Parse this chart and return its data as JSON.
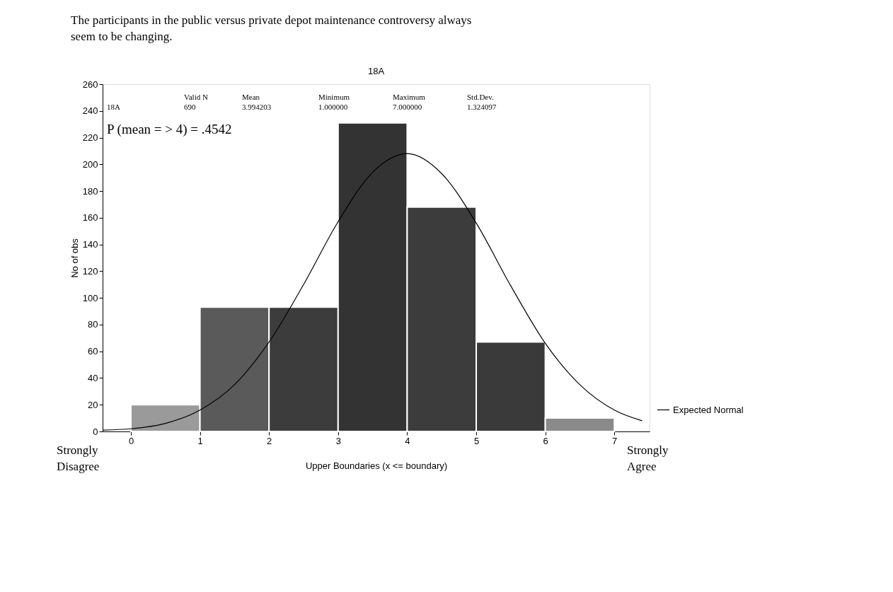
{
  "chart_data": {
    "type": "histogram",
    "title": "18A",
    "xlabel": "Upper Boundaries (x <= boundary)",
    "ylabel": "No of obs",
    "bins": [
      0,
      1,
      2,
      3,
      4,
      5,
      6,
      7
    ],
    "values": [
      20,
      93,
      93,
      231,
      168,
      67,
      10
    ],
    "colors": [
      "#9a9a9a",
      "#5a5a5a",
      "#3c3c3c",
      "#333333",
      "#3c3c3c",
      "#3a3a3a",
      "#8a8a8a"
    ],
    "series": [
      {
        "type": "line",
        "name": "Expected Normal",
        "color": "#000000",
        "x": [
          -0.4,
          0,
          0.5,
          1,
          1.5,
          2,
          2.5,
          3,
          3.5,
          4,
          4.5,
          5,
          5.5,
          6,
          6.5,
          7,
          7.4
        ],
        "values": [
          1,
          2,
          6,
          16,
          35,
          67,
          110,
          157,
          194,
          208,
          193,
          156,
          109,
          66,
          35,
          16,
          8
        ]
      }
    ],
    "xlim": [
      -0.41,
      7.51
    ],
    "xticks": [
      0,
      1,
      2,
      3,
      4,
      5,
      6,
      7
    ],
    "ylim": [
      0,
      260
    ],
    "yticks": [
      0,
      20,
      40,
      60,
      80,
      100,
      120,
      140,
      160,
      180,
      200,
      220,
      240,
      260
    ],
    "grid": false,
    "legend": "bottom right",
    "annotations": [
      "The participants in the public versus private depot maintenance controversy always\nseem to be changing.",
      "Valid N",
      "Mean",
      "Minimum",
      "Maximum",
      "Std.Dev.",
      "18A",
      "690",
      "3.994203",
      "1.000000",
      "7.000000",
      "1.324097",
      "P (mean = > 4) = .4542",
      "Strongly\nDisagree",
      "Strongly\nAgree"
    ]
  }
}
